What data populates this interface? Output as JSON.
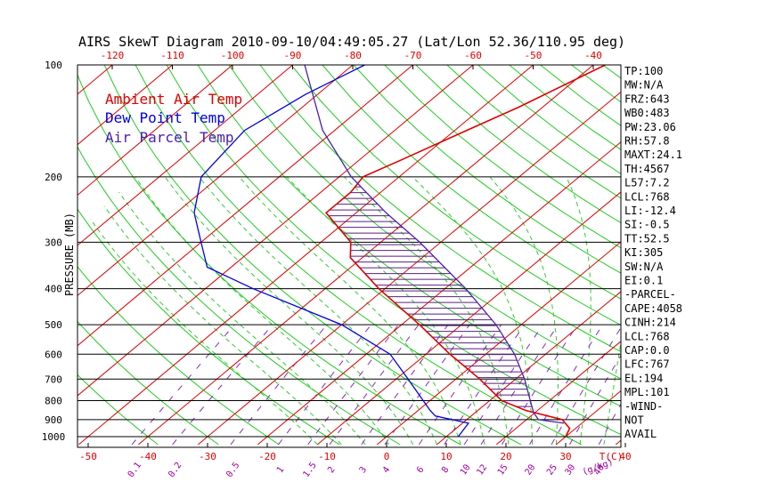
{
  "chart_data": {
    "type": "skewt",
    "title": "AIRS SkewT Diagram 2010-09-10/04:49:05.27 (Lat/Lon 52.36/110.95 deg)",
    "ylabel": "PRESSURE (MB)",
    "x_unit_label": "T(C)",
    "mixing_unit_label": "(g/kg)",
    "pressure_range": [
      1000,
      100
    ],
    "pressure_ticks": [
      100,
      200,
      300,
      400,
      500,
      600,
      700,
      800,
      900,
      1000
    ],
    "top_temp_ticks": [
      -120,
      -110,
      -100,
      -90,
      -80,
      -70,
      -60,
      -50,
      -40
    ],
    "bottom_temp_ticks": [
      -50,
      -40,
      -30,
      -20,
      -10,
      0,
      10,
      20,
      30,
      40
    ],
    "mixing_ratio_labels": [
      "0.1",
      "0.2",
      "0.5",
      "1",
      "1.5",
      "2",
      "3",
      "4",
      "6",
      "8",
      "10",
      "12",
      "15",
      "20",
      "25",
      "30",
      "40"
    ],
    "legend": [
      {
        "label": "Ambient Air Temp",
        "color": "#e00000"
      },
      {
        "label": "Dew Point Temp",
        "color": "#0000e0"
      },
      {
        "label": "Air Parcel Temp",
        "color": "#4a1fb0"
      }
    ],
    "series": [
      {
        "name": "Ambient Air Temp",
        "color": "#e00000",
        "points": [
          [
            1000,
            30
          ],
          [
            950,
            29
          ],
          [
            900,
            26
          ],
          [
            850,
            18
          ],
          [
            800,
            12
          ],
          [
            700,
            4
          ],
          [
            600,
            -6
          ],
          [
            500,
            -17
          ],
          [
            400,
            -31
          ],
          [
            330,
            -42
          ],
          [
            300,
            -45
          ],
          [
            250,
            -55
          ],
          [
            220,
            -55
          ],
          [
            200,
            -56
          ],
          [
            180,
            -53
          ],
          [
            150,
            -48
          ],
          [
            130,
            -44
          ],
          [
            100,
            -38
          ]
        ]
      },
      {
        "name": "Dew Point Temp",
        "color": "#0000e0",
        "points": [
          [
            1000,
            12
          ],
          [
            920,
            11
          ],
          [
            880,
            4
          ],
          [
            850,
            2
          ],
          [
            700,
            -8
          ],
          [
            600,
            -16
          ],
          [
            500,
            -30
          ],
          [
            400,
            -52
          ],
          [
            350,
            -64
          ],
          [
            300,
            -70
          ],
          [
            250,
            -77
          ],
          [
            200,
            -83
          ],
          [
            150,
            -85
          ],
          [
            120,
            -82
          ],
          [
            100,
            -78
          ]
        ]
      },
      {
        "name": "Air Parcel Temp",
        "color": "#4a1fb0",
        "points": [
          [
            920,
            27
          ],
          [
            900,
            22
          ],
          [
            860,
            19.7
          ],
          [
            800,
            16.8
          ],
          [
            700,
            11.5
          ],
          [
            600,
            4.8
          ],
          [
            500,
            -4.2
          ],
          [
            400,
            -16.5
          ],
          [
            300,
            -33.5
          ],
          [
            250,
            -45
          ],
          [
            200,
            -58
          ],
          [
            150,
            -72
          ],
          [
            100,
            -88
          ]
        ]
      }
    ]
  },
  "indices": [
    "TP:100",
    "MW:N/A",
    "FRZ:643",
    "WB0:483",
    "PW:23.06",
    "RH:57.8",
    "MAXT:24.1",
    "TH:4567",
    "L57:7.2",
    "LCL:768",
    "LI:-12.4",
    "SI:-0.5",
    "TT:52.5",
    "KI:305",
    "SW:N/A",
    "EI:0.1",
    "-PARCEL-",
    "CAPE:4058",
    "CINH:214",
    "LCL:768",
    "CAP:0.0",
    "LFC:767",
    "EL:194",
    "MPL:101",
    "-WIND-",
    "NOT",
    "AVAIL"
  ]
}
